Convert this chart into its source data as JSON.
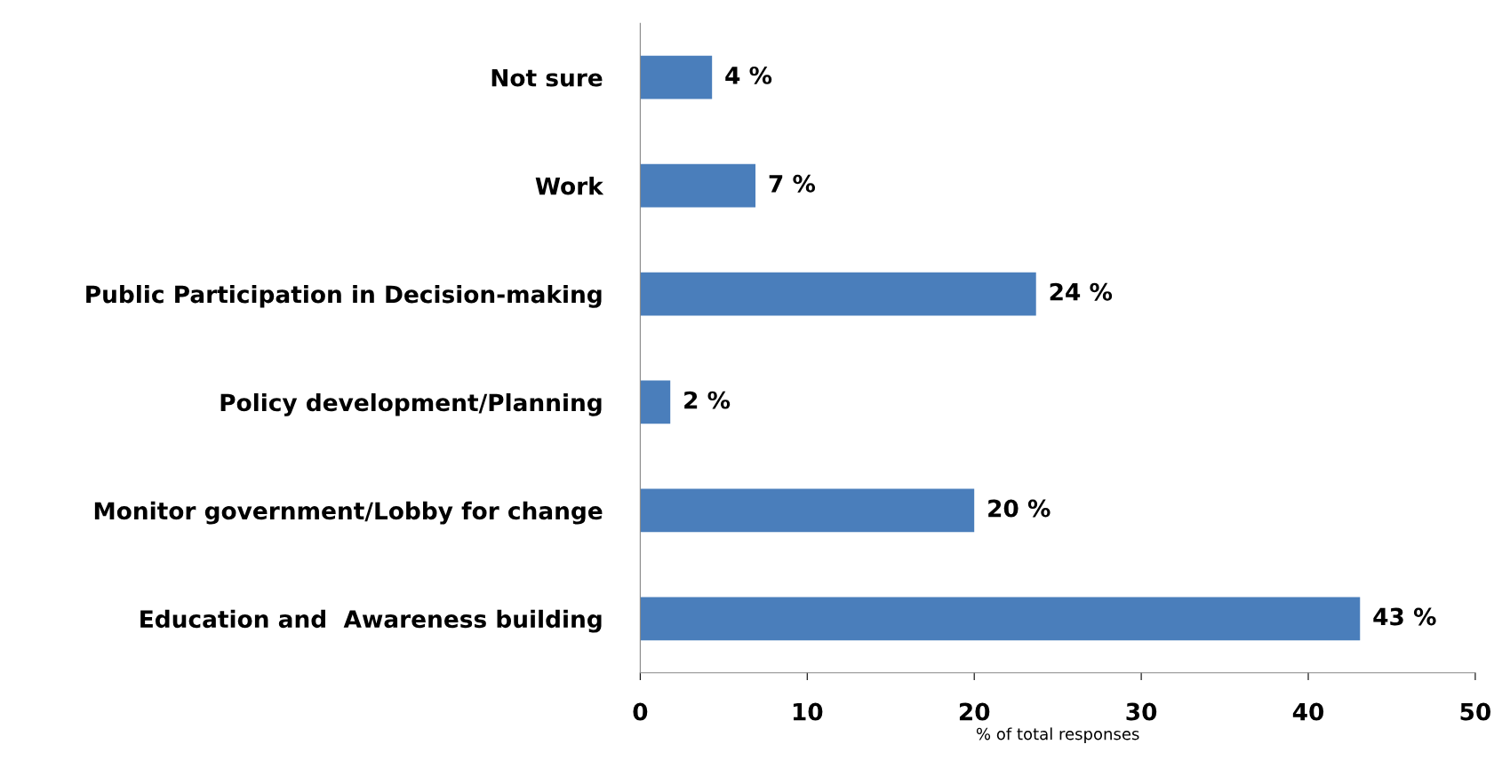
{
  "chart_data": {
    "type": "bar",
    "orientation": "horizontal",
    "categories": [
      "Not sure",
      "Work",
      "Public Participation in Decision-making",
      "Policy development/Planning",
      "Monitor government/Lobby for change",
      "Education and  Awareness building"
    ],
    "values": [
      4.3,
      6.9,
      23.7,
      1.8,
      20.0,
      43.1
    ],
    "value_labels": [
      "4 %",
      "7 %",
      "24 %",
      "2 %",
      "20 %",
      "43 %"
    ],
    "color": "#4a7ebb",
    "xlim": [
      0,
      50
    ],
    "xticks": [
      0,
      10,
      20,
      30,
      40,
      50
    ],
    "xlabel": "% of total responses",
    "grid": false,
    "legend": false
  }
}
